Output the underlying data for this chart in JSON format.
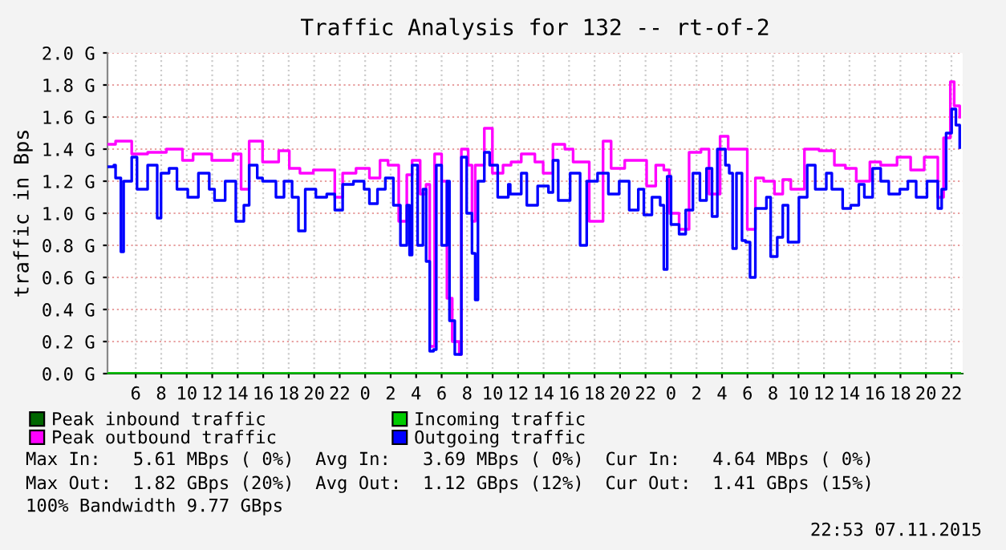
{
  "chart_data": {
    "type": "step",
    "title": "Traffic Analysis for 132 -- rt-of-2",
    "ylabel": "traffic in Bps",
    "xlim": [
      "2015-11-05T03:47",
      "2015-11-07T22:53"
    ],
    "ylim": [
      0,
      2.0
    ],
    "xticks": [
      {
        "value": "2015-11-05T06:00",
        "label": "6"
      },
      {
        "value": "2015-11-05T08:00",
        "label": "8"
      },
      {
        "value": "2015-11-05T10:00",
        "label": "10"
      },
      {
        "value": "2015-11-05T12:00",
        "label": "12"
      },
      {
        "value": "2015-11-05T14:00",
        "label": "14"
      },
      {
        "value": "2015-11-05T16:00",
        "label": "16"
      },
      {
        "value": "2015-11-05T18:00",
        "label": "18"
      },
      {
        "value": "2015-11-05T20:00",
        "label": "20"
      },
      {
        "value": "2015-11-05T22:00",
        "label": "22"
      },
      {
        "value": "2015-11-06T00:00",
        "label": "0"
      },
      {
        "value": "2015-11-06T02:00",
        "label": "2"
      },
      {
        "value": "2015-11-06T04:00",
        "label": "4"
      },
      {
        "value": "2015-11-06T06:00",
        "label": "6"
      },
      {
        "value": "2015-11-06T08:00",
        "label": "8"
      },
      {
        "value": "2015-11-06T10:00",
        "label": "10"
      },
      {
        "value": "2015-11-06T12:00",
        "label": "12"
      },
      {
        "value": "2015-11-06T14:00",
        "label": "14"
      },
      {
        "value": "2015-11-06T16:00",
        "label": "16"
      },
      {
        "value": "2015-11-06T18:00",
        "label": "18"
      },
      {
        "value": "2015-11-06T20:00",
        "label": "20"
      },
      {
        "value": "2015-11-06T22:00",
        "label": "22"
      },
      {
        "value": "2015-11-07T00:00",
        "label": "0"
      },
      {
        "value": "2015-11-07T02:00",
        "label": "2"
      },
      {
        "value": "2015-11-07T04:00",
        "label": "4"
      },
      {
        "value": "2015-11-07T06:00",
        "label": "6"
      },
      {
        "value": "2015-11-07T08:00",
        "label": "8"
      },
      {
        "value": "2015-11-07T10:00",
        "label": "10"
      },
      {
        "value": "2015-11-07T12:00",
        "label": "12"
      },
      {
        "value": "2015-11-07T14:00",
        "label": "14"
      },
      {
        "value": "2015-11-07T16:00",
        "label": "16"
      },
      {
        "value": "2015-11-07T18:00",
        "label": "18"
      },
      {
        "value": "2015-11-07T20:00",
        "label": "20"
      },
      {
        "value": "2015-11-07T22:00",
        "label": "22"
      }
    ],
    "yticks": [
      {
        "value": 0,
        "label": "0.0 G"
      },
      {
        "value": 0.2,
        "label": "0.2 G"
      },
      {
        "value": 0.4,
        "label": "0.4 G"
      },
      {
        "value": 0.6,
        "label": "0.6 G"
      },
      {
        "value": 0.8,
        "label": "0.8 G"
      },
      {
        "value": 1.0,
        "label": "1.0 G"
      },
      {
        "value": 1.2,
        "label": "1.2 G"
      },
      {
        "value": 1.4,
        "label": "1.4 G"
      },
      {
        "value": 1.6,
        "label": "1.6 G"
      },
      {
        "value": 1.8,
        "label": "1.8 G"
      },
      {
        "value": 2.0,
        "label": "2.0 G"
      }
    ],
    "grid": true,
    "legend": "bottom",
    "series": [
      {
        "name": "Peak inbound traffic",
        "color": "#006600",
        "x": [
          "2015-11-05T03:47",
          "2015-11-07T22:39"
        ],
        "values": [
          0,
          0
        ]
      },
      {
        "name": "Peak outbound traffic",
        "color": "#ff00ff",
        "x": [
          "2015-11-05T03:47",
          "2015-11-05T04:25",
          "2015-11-05T05:41",
          "2015-11-05T06:56",
          "2015-11-05T08:24",
          "2015-11-05T09:40",
          "2015-11-05T10:30",
          "2015-11-05T11:58",
          "2015-11-05T13:38",
          "2015-11-05T14:16",
          "2015-11-05T14:54",
          "2015-11-05T15:57",
          "2015-11-05T17:13",
          "2015-11-05T18:03",
          "2015-11-05T18:53",
          "2015-11-05T19:56",
          "2015-11-05T20:46",
          "2015-11-05T21:37",
          "2015-11-05T22:14",
          "2015-11-05T23:17",
          "2015-11-06T00:20",
          "2015-11-06T01:10",
          "2015-11-06T01:48",
          "2015-11-06T02:38",
          "2015-11-06T03:16",
          "2015-11-06T03:41",
          "2015-11-06T04:19",
          "2015-11-06T04:47",
          "2015-11-06T05:04",
          "2015-11-06T05:27",
          "2015-11-06T06:00",
          "2015-11-06T06:25",
          "2015-11-06T06:50",
          "2015-11-06T07:23",
          "2015-11-06T07:33",
          "2015-11-06T08:05",
          "2015-11-06T08:23",
          "2015-11-06T08:38",
          "2015-11-06T09:21",
          "2015-11-06T09:59",
          "2015-11-06T10:49",
          "2015-11-06T11:27",
          "2015-11-06T12:15",
          "2015-11-06T13:19",
          "2015-11-06T13:58",
          "2015-11-06T14:44",
          "2015-11-06T15:40",
          "2015-11-06T16:19",
          "2015-11-06T17:35",
          "2015-11-06T18:40",
          "2015-11-06T19:18",
          "2015-11-06T20:22",
          "2015-11-06T21:19",
          "2015-11-06T22:05",
          "2015-11-06T22:48",
          "2015-11-06T23:26",
          "2015-11-06T23:52",
          "2015-11-07T00:38",
          "2015-11-07T01:25",
          "2015-11-07T02:21",
          "2015-11-07T02:59",
          "2015-11-07T03:51",
          "2015-11-07T04:29",
          "2015-11-07T05:08",
          "2015-11-07T05:59",
          "2015-11-07T06:37",
          "2015-11-07T07:16",
          "2015-11-07T08:07",
          "2015-11-07T08:46",
          "2015-11-07T09:24",
          "2015-11-07T10:28",
          "2015-11-07T11:37",
          "2015-11-07T12:49",
          "2015-11-07T13:41",
          "2015-11-07T14:32",
          "2015-11-07T15:36",
          "2015-11-07T16:27",
          "2015-11-07T17:44",
          "2015-11-07T18:48",
          "2015-11-07T19:52",
          "2015-11-07T20:56",
          "2015-11-07T21:23",
          "2015-11-07T21:55",
          "2015-11-07T22:13",
          "2015-11-07T22:39"
        ],
        "values": [
          1.43,
          1.45,
          1.37,
          1.38,
          1.4,
          1.33,
          1.37,
          1.33,
          1.37,
          1.15,
          1.45,
          1.32,
          1.39,
          1.28,
          1.25,
          1.27,
          1.27,
          1.1,
          1.25,
          1.28,
          1.22,
          1.33,
          1.3,
          0.95,
          1.24,
          1.33,
          1.12,
          1.18,
          0.17,
          1.37,
          1.2,
          0.47,
          0.2,
          0.12,
          1.4,
          1.3,
          0.95,
          1.3,
          1.53,
          1.25,
          1.3,
          1.32,
          1.37,
          1.32,
          1.25,
          1.43,
          1.4,
          1.32,
          0.95,
          1.45,
          1.28,
          1.33,
          1.33,
          1.17,
          1.3,
          1.27,
          1.0,
          0.9,
          1.38,
          1.4,
          1.12,
          1.48,
          1.4,
          1.4,
          0.9,
          1.22,
          1.2,
          1.12,
          1.21,
          1.15,
          1.4,
          1.39,
          1.3,
          1.28,
          1.2,
          1.32,
          1.3,
          1.35,
          1.27,
          1.35,
          1.1,
          1.47,
          1.82,
          1.67,
          1.6
        ]
      },
      {
        "name": "Incoming traffic",
        "color": "#00cc00",
        "x": [
          "2015-11-05T03:47",
          "2015-11-07T22:39"
        ],
        "values": [
          0,
          0
        ]
      },
      {
        "name": "Outgoing traffic",
        "color": "#0000ff",
        "x": [
          "2015-11-05T03:47",
          "2015-11-05T04:17",
          "2015-11-05T04:25",
          "2015-11-05T04:50",
          "2015-11-05T05:03",
          "2015-11-05T05:41",
          "2015-11-05T06:06",
          "2015-11-05T06:56",
          "2015-11-05T07:41",
          "2015-11-05T07:59",
          "2015-11-05T08:37",
          "2015-11-05T09:14",
          "2015-11-05T10:05",
          "2015-11-05T10:55",
          "2015-11-05T11:46",
          "2015-11-05T12:11",
          "2015-11-05T13:01",
          "2015-11-05T13:51",
          "2015-11-05T14:29",
          "2015-11-05T14:54",
          "2015-11-05T15:32",
          "2015-11-05T15:57",
          "2015-11-05T17:00",
          "2015-11-05T17:38",
          "2015-11-05T18:16",
          "2015-11-05T18:46",
          "2015-11-05T19:18",
          "2015-11-05T20:08",
          "2015-11-05T20:59",
          "2015-11-05T21:37",
          "2015-11-05T22:14",
          "2015-11-05T23:05",
          "2015-11-05T23:55",
          "2015-11-06T00:20",
          "2015-11-06T00:58",
          "2015-11-06T01:35",
          "2015-11-06T02:13",
          "2015-11-06T02:46",
          "2015-11-06T03:16",
          "2015-11-06T03:29",
          "2015-11-06T03:41",
          "2015-11-06T04:07",
          "2015-11-06T04:32",
          "2015-11-06T04:47",
          "2015-11-06T05:04",
          "2015-11-06T05:22",
          "2015-11-06T05:35",
          "2015-11-06T06:00",
          "2015-11-06T06:25",
          "2015-11-06T06:37",
          "2015-11-06T07:02",
          "2015-11-06T07:23",
          "2015-11-06T07:33",
          "2015-11-06T07:58",
          "2015-11-06T08:23",
          "2015-11-06T08:38",
          "2015-11-06T08:51",
          "2015-11-06T09:21",
          "2015-11-06T09:46",
          "2015-11-06T10:24",
          "2015-11-06T11:14",
          "2015-11-06T11:23",
          "2015-11-06T12:15",
          "2015-11-06T12:41",
          "2015-11-06T13:32",
          "2015-11-06T14:23",
          "2015-11-06T14:44",
          "2015-11-06T15:09",
          "2015-11-06T16:05",
          "2015-11-06T16:52",
          "2015-11-06T17:23",
          "2015-11-06T18:14",
          "2015-11-06T19:05",
          "2015-11-06T19:56",
          "2015-11-06T20:43",
          "2015-11-06T21:26",
          "2015-11-06T21:52",
          "2015-11-06T22:30",
          "2015-11-06T23:09",
          "2015-11-06T23:26",
          "2015-11-06T23:42",
          "2015-11-07T00:00",
          "2015-11-07T00:38",
          "2015-11-07T01:09",
          "2015-11-07T01:43",
          "2015-11-07T02:16",
          "2015-11-07T02:47",
          "2015-11-07T03:13",
          "2015-11-07T03:38",
          "2015-11-07T04:16",
          "2015-11-07T04:34",
          "2015-11-07T04:50",
          "2015-11-07T05:08",
          "2015-11-07T05:34",
          "2015-11-07T05:51",
          "2015-11-07T06:12",
          "2015-11-07T06:37",
          "2015-11-07T07:29",
          "2015-11-07T07:49",
          "2015-11-07T08:20",
          "2015-11-07T08:46",
          "2015-11-07T09:11",
          "2015-11-07T10:02",
          "2015-11-07T10:41",
          "2015-11-07T11:19",
          "2015-11-07T12:11",
          "2015-11-07T12:37",
          "2015-11-07T13:28",
          "2015-11-07T14:06",
          "2015-11-07T14:44",
          "2015-11-07T15:10",
          "2015-11-07T15:49",
          "2015-11-07T16:27",
          "2015-11-07T17:05",
          "2015-11-07T17:57",
          "2015-11-07T18:35",
          "2015-11-07T19:14",
          "2015-11-07T20:05",
          "2015-11-07T20:56",
          "2015-11-07T21:14",
          "2015-11-07T21:35",
          "2015-11-07T22:01",
          "2015-11-07T22:21",
          "2015-11-07T22:39"
        ],
        "values": [
          1.29,
          1.3,
          1.22,
          0.76,
          1.2,
          1.35,
          1.15,
          1.3,
          0.97,
          1.25,
          1.28,
          1.15,
          1.1,
          1.25,
          1.15,
          1.08,
          1.2,
          0.95,
          1.05,
          1.3,
          1.22,
          1.2,
          1.1,
          1.2,
          1.1,
          0.89,
          1.15,
          1.1,
          1.12,
          1.02,
          1.18,
          1.2,
          1.15,
          1.06,
          1.15,
          1.22,
          1.05,
          0.8,
          1.05,
          0.74,
          1.3,
          0.8,
          1.15,
          0.7,
          0.14,
          0.15,
          1.3,
          0.8,
          1.2,
          0.33,
          0.12,
          0.12,
          1.35,
          1.0,
          0.75,
          0.46,
          1.2,
          1.38,
          1.3,
          1.1,
          1.18,
          1.12,
          1.25,
          1.05,
          1.17,
          1.13,
          1.33,
          1.08,
          1.25,
          0.8,
          1.2,
          1.25,
          1.12,
          1.2,
          1.02,
          1.15,
          0.99,
          1.1,
          1.05,
          0.65,
          1.23,
          0.93,
          0.87,
          1.02,
          1.25,
          1.08,
          1.28,
          0.98,
          1.4,
          1.3,
          1.25,
          0.78,
          1.25,
          0.83,
          0.82,
          0.6,
          1.03,
          1.1,
          0.73,
          0.85,
          1.05,
          0.82,
          1.1,
          1.3,
          1.15,
          1.25,
          1.15,
          1.03,
          1.05,
          1.18,
          1.1,
          1.28,
          1.2,
          1.12,
          1.15,
          1.2,
          1.1,
          1.2,
          1.03,
          1.15,
          1.5,
          1.65,
          1.55,
          1.41
        ]
      }
    ],
    "annotations": [
      "Max In:   5.61 MBps ( 0%)  Avg In:   3.69 MBps ( 0%)  Cur In:   4.64 MBps ( 0%)",
      "Max Out:  1.82 GBps (20%)  Avg Out:  1.12 GBps (12%)  Cur Out:  1.41 GBps (15%)",
      "100% Bandwidth 9.77 GBps",
      "22:53 07.11.2015"
    ]
  }
}
